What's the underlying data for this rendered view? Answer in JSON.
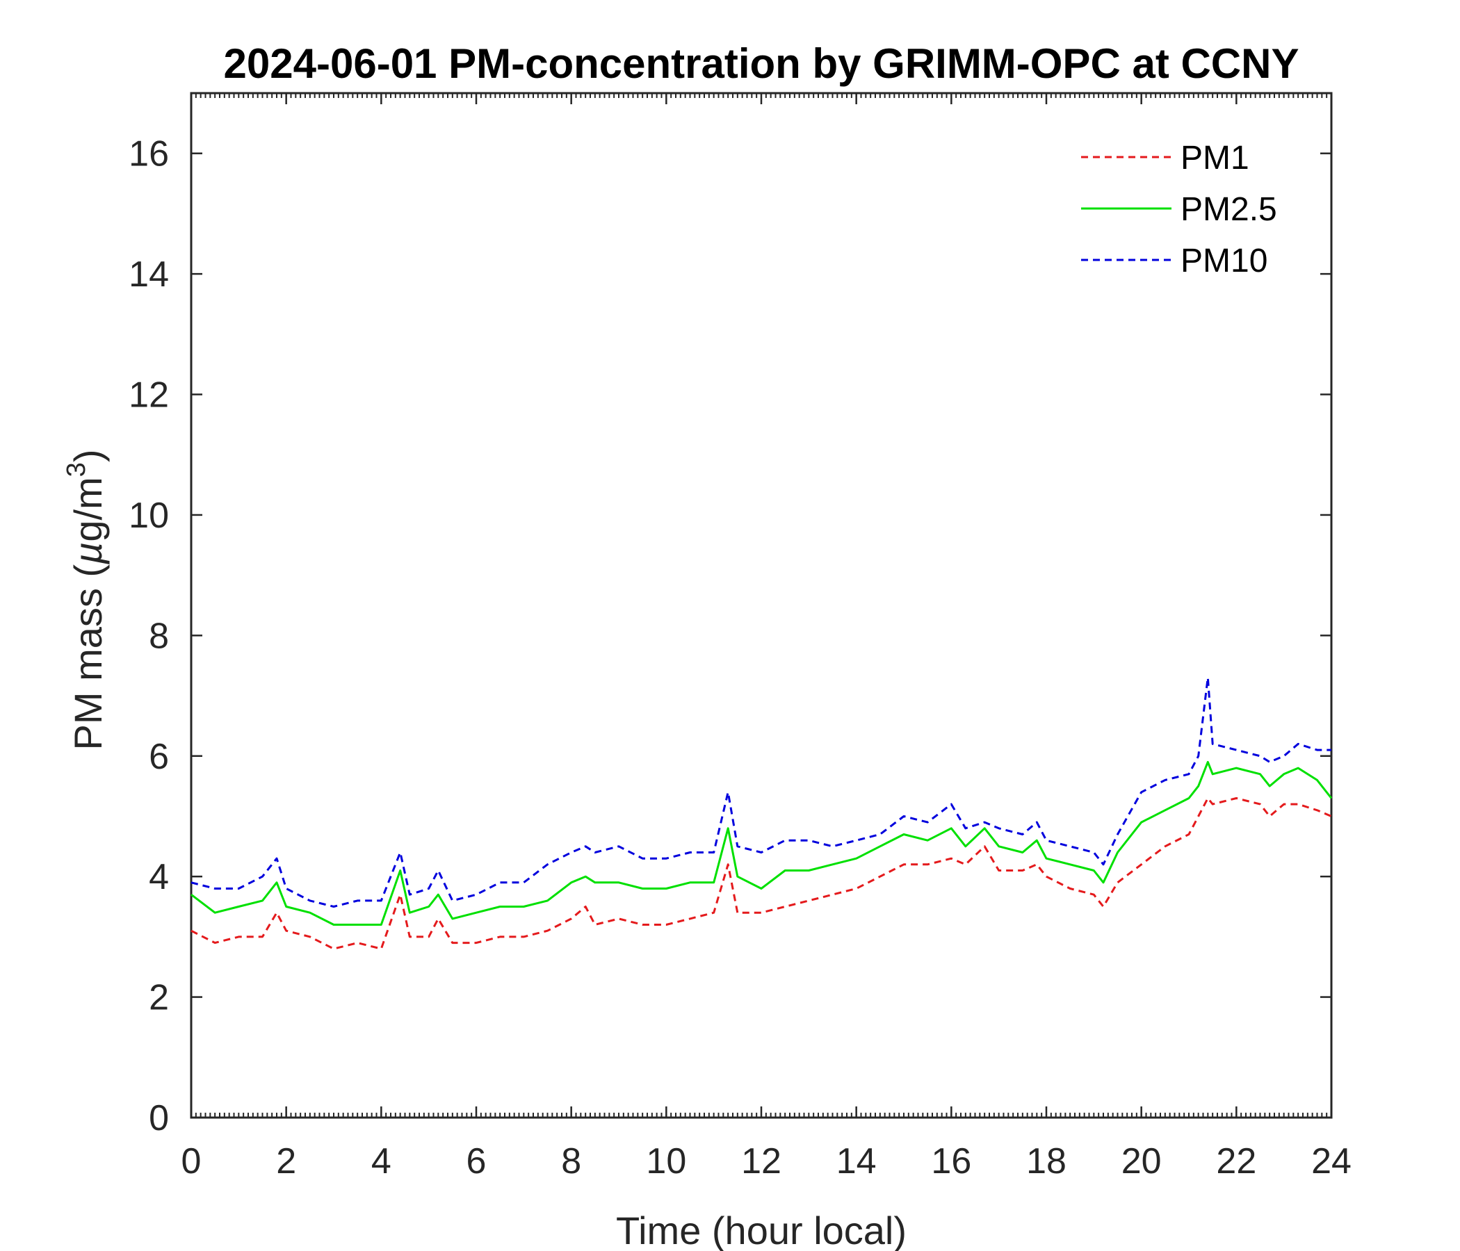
{
  "chart_data": {
    "type": "line",
    "title": "2024-06-01 PM-concentration by GRIMM-OPC at CCNY",
    "xlabel": "Time (hour local)",
    "ylabel": "PM mass (µg/m³)",
    "ylabel_parts": {
      "before": "PM mass (",
      "mu": "µ",
      "after": "g/m",
      "sup": "3",
      "close": ")"
    },
    "xlim": [
      0,
      24
    ],
    "ylim": [
      0,
      17
    ],
    "xticks": [
      0,
      2,
      4,
      6,
      8,
      10,
      12,
      14,
      16,
      18,
      20,
      22,
      24
    ],
    "yticks": [
      0,
      2,
      4,
      6,
      8,
      10,
      12,
      14,
      16
    ],
    "xtick_labels": [
      "0",
      "2",
      "4",
      "6",
      "8",
      "10",
      "12",
      "14",
      "16",
      "18",
      "20",
      "22",
      "24"
    ],
    "ytick_labels": [
      "0",
      "2",
      "4",
      "6",
      "8",
      "10",
      "12",
      "14",
      "16"
    ],
    "legend_position": "top-right",
    "grid": false,
    "x": [
      0,
      0.5,
      1,
      1.5,
      1.8,
      2,
      2.5,
      3,
      3.5,
      4,
      4.4,
      4.6,
      5,
      5.2,
      5.5,
      6,
      6.5,
      7,
      7.5,
      8,
      8.3,
      8.5,
      9,
      9.5,
      10,
      10.5,
      11,
      11.3,
      11.5,
      12,
      12.5,
      13,
      13.5,
      14,
      14.5,
      15,
      15.5,
      16,
      16.3,
      16.7,
      17,
      17.5,
      17.8,
      18,
      18.5,
      19,
      19.2,
      19.5,
      20,
      20.5,
      21,
      21.2,
      21.4,
      21.5,
      22,
      22.5,
      22.7,
      23,
      23.3,
      23.7,
      24
    ],
    "series": [
      {
        "name": "PM1",
        "color": "#e41a1c",
        "dash": "dashed",
        "values": [
          3.1,
          2.9,
          3.0,
          3.0,
          3.4,
          3.1,
          3.0,
          2.8,
          2.9,
          2.8,
          3.7,
          3.0,
          3.0,
          3.3,
          2.9,
          2.9,
          3.0,
          3.0,
          3.1,
          3.3,
          3.5,
          3.2,
          3.3,
          3.2,
          3.2,
          3.3,
          3.4,
          4.2,
          3.4,
          3.4,
          3.5,
          3.6,
          3.7,
          3.8,
          4.0,
          4.2,
          4.2,
          4.3,
          4.2,
          4.5,
          4.1,
          4.1,
          4.2,
          4.0,
          3.8,
          3.7,
          3.5,
          3.9,
          4.2,
          4.5,
          4.7,
          5.0,
          5.3,
          5.2,
          5.3,
          5.2,
          5.0,
          5.2,
          5.2,
          5.1,
          5.0
        ]
      },
      {
        "name": "PM2.5",
        "color": "#00e000",
        "dash": "solid",
        "values": [
          3.7,
          3.4,
          3.5,
          3.6,
          3.9,
          3.5,
          3.4,
          3.2,
          3.2,
          3.2,
          4.1,
          3.4,
          3.5,
          3.7,
          3.3,
          3.4,
          3.5,
          3.5,
          3.6,
          3.9,
          4.0,
          3.9,
          3.9,
          3.8,
          3.8,
          3.9,
          3.9,
          4.8,
          4.0,
          3.8,
          4.1,
          4.1,
          4.2,
          4.3,
          4.5,
          4.7,
          4.6,
          4.8,
          4.5,
          4.8,
          4.5,
          4.4,
          4.6,
          4.3,
          4.2,
          4.1,
          3.9,
          4.4,
          4.9,
          5.1,
          5.3,
          5.5,
          5.9,
          5.7,
          5.8,
          5.7,
          5.5,
          5.7,
          5.8,
          5.6,
          5.3
        ]
      },
      {
        "name": "PM10",
        "color": "#0000dd",
        "dash": "dashed",
        "values": [
          3.9,
          3.8,
          3.8,
          4.0,
          4.3,
          3.8,
          3.6,
          3.5,
          3.6,
          3.6,
          4.4,
          3.7,
          3.8,
          4.1,
          3.6,
          3.7,
          3.9,
          3.9,
          4.2,
          4.4,
          4.5,
          4.4,
          4.5,
          4.3,
          4.3,
          4.4,
          4.4,
          5.4,
          4.5,
          4.4,
          4.6,
          4.6,
          4.5,
          4.6,
          4.7,
          5.0,
          4.9,
          5.2,
          4.8,
          4.9,
          4.8,
          4.7,
          4.9,
          4.6,
          4.5,
          4.4,
          4.2,
          4.7,
          5.4,
          5.6,
          5.7,
          6.0,
          7.3,
          6.2,
          6.1,
          6.0,
          5.9,
          6.0,
          6.2,
          6.1,
          6.1
        ]
      }
    ]
  }
}
